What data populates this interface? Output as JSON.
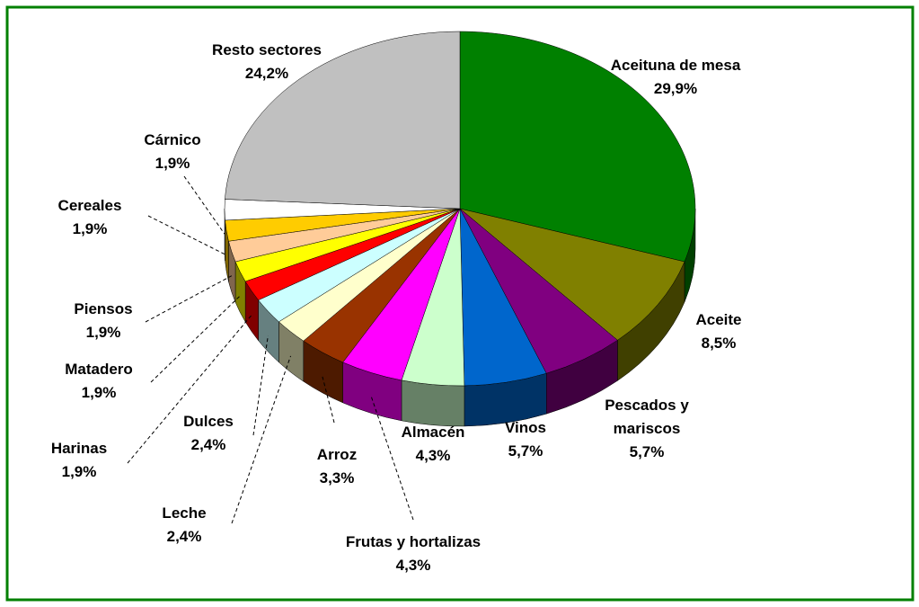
{
  "chart_data": {
    "type": "pie",
    "categories": [
      "Aceituna de mesa",
      "Aceite",
      "Pescados y mariscos",
      "Vinos",
      "Almacén",
      "Frutas y hortalizas",
      "Arroz",
      "Leche",
      "Dulces",
      "Harinas",
      "Matadero",
      "Piensos",
      "Cereales",
      "Cárnico",
      "Resto sectores"
    ],
    "values": [
      29.9,
      8.5,
      5.7,
      5.7,
      4.3,
      4.3,
      3.3,
      2.4,
      2.4,
      1.9,
      1.9,
      1.9,
      1.9,
      1.9,
      24.2
    ],
    "value_labels": [
      "29,9%",
      "8,5%",
      "5,7%",
      "5,7%",
      "4,3%",
      "4,3%",
      "3,3%",
      "2,4%",
      "2,4%",
      "1,9%",
      "1,9%",
      "1,9%",
      "1,9%",
      "1,9%",
      "24,2%"
    ],
    "colors": [
      "#008000",
      "#808000",
      "#800080",
      "#0066cc",
      "#ccffcc",
      "#ff00ff",
      "#993300",
      "#ffffcc",
      "#ccffff",
      "#ff0000",
      "#ffff00",
      "#ffcc99",
      "#ffcc00",
      "#ffffff",
      "#c0c0c0"
    ]
  }
}
